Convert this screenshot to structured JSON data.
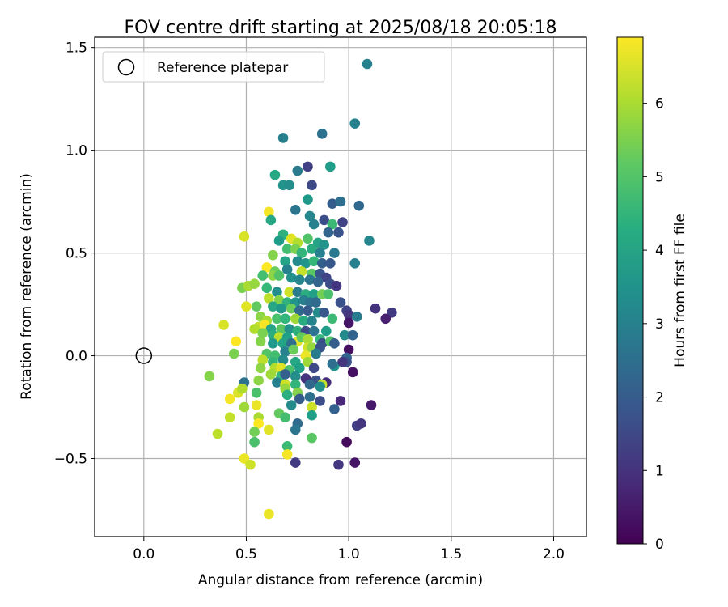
{
  "chart_data": {
    "type": "scatter",
    "title": "FOV centre drift starting at 2025/08/18 20:05:18",
    "xlabel": "Angular distance from reference (arcmin)",
    "ylabel": "Rotation from reference (arcmin)",
    "xlim": [
      -0.24,
      2.16
    ],
    "ylim": [
      -0.88,
      1.55
    ],
    "xticks": [
      0.0,
      0.5,
      1.0,
      1.5,
      2.0
    ],
    "xtick_labels": [
      "0.0",
      "0.5",
      "1.0",
      "1.5",
      "2.0"
    ],
    "yticks": [
      -0.5,
      0.0,
      0.5,
      1.0,
      1.5
    ],
    "ytick_labels": [
      "−0.5",
      "0.0",
      "0.5",
      "1.0",
      "1.5"
    ],
    "grid": true,
    "legend": {
      "placement": "upper-left",
      "entries": [
        {
          "label": "Reference platepar",
          "marker": "open-circle"
        }
      ]
    },
    "reference_point": {
      "x": 0.0,
      "y": 0.0,
      "label": "Reference platepar"
    },
    "colorbar": {
      "label": "Hours from first FF file",
      "colormap": "viridis",
      "min": 0,
      "max": 6.9,
      "ticks": [
        0,
        1,
        2,
        3,
        4,
        5,
        6
      ],
      "tick_labels": [
        "0",
        "1",
        "2",
        "3",
        "4",
        "5",
        "6"
      ]
    },
    "series": [
      {
        "points": [
          [
            1.09,
            1.42,
            3.0
          ],
          [
            1.03,
            1.13,
            3.1
          ],
          [
            0.68,
            1.06,
            3.0
          ],
          [
            0.87,
            1.08,
            2.6
          ],
          [
            0.8,
            0.92,
            1.3
          ],
          [
            0.75,
            0.9,
            2.9
          ],
          [
            0.91,
            0.92,
            3.8
          ],
          [
            0.64,
            0.88,
            4.1
          ],
          [
            0.82,
            0.83,
            1.5
          ],
          [
            0.68,
            0.83,
            3.6
          ],
          [
            0.71,
            0.83,
            3.4
          ],
          [
            0.8,
            0.76,
            3.7
          ],
          [
            0.92,
            0.74,
            2.0
          ],
          [
            0.96,
            0.75,
            2.5
          ],
          [
            1.05,
            0.73,
            2.3
          ],
          [
            0.74,
            0.71,
            2.7
          ],
          [
            0.61,
            0.7,
            6.8
          ],
          [
            0.62,
            0.66,
            4.1
          ],
          [
            0.81,
            0.68,
            3.2
          ],
          [
            0.88,
            0.66,
            1.6
          ],
          [
            0.97,
            0.65,
            1.4
          ],
          [
            0.83,
            0.64,
            3.0
          ],
          [
            0.92,
            0.64,
            4.7
          ],
          [
            0.9,
            0.6,
            2.2
          ],
          [
            0.95,
            0.6,
            1.8
          ],
          [
            0.68,
            0.59,
            4.4
          ],
          [
            0.72,
            0.57,
            6.6
          ],
          [
            0.75,
            0.55,
            6.1
          ],
          [
            0.8,
            0.57,
            5.0
          ],
          [
            0.85,
            0.55,
            4.0
          ],
          [
            0.88,
            0.54,
            3.5
          ],
          [
            1.1,
            0.56,
            3.2
          ],
          [
            0.49,
            0.58,
            6.5
          ],
          [
            0.66,
            0.56,
            3.8
          ],
          [
            0.7,
            0.52,
            4.8
          ],
          [
            0.74,
            0.52,
            5.5
          ],
          [
            0.77,
            0.5,
            4.5
          ],
          [
            0.82,
            0.52,
            4.2
          ],
          [
            0.86,
            0.5,
            3.0
          ],
          [
            0.93,
            0.5,
            2.8
          ],
          [
            0.63,
            0.49,
            5.6
          ],
          [
            0.69,
            0.46,
            4.0
          ],
          [
            0.75,
            0.46,
            3.3
          ],
          [
            0.79,
            0.45,
            3.6
          ],
          [
            0.83,
            0.46,
            4.6
          ],
          [
            0.87,
            0.45,
            2.1
          ],
          [
            0.91,
            0.45,
            1.9
          ],
          [
            1.03,
            0.45,
            3.0
          ],
          [
            0.6,
            0.43,
            6.9
          ],
          [
            0.64,
            0.41,
            5.3
          ],
          [
            0.7,
            0.42,
            3.1
          ],
          [
            0.77,
            0.41,
            6.3
          ],
          [
            0.82,
            0.4,
            5.1
          ],
          [
            0.86,
            0.4,
            1.8
          ],
          [
            0.89,
            0.38,
            1.4
          ],
          [
            0.58,
            0.39,
            4.8
          ],
          [
            0.63,
            0.39,
            5.7
          ],
          [
            0.66,
            0.39,
            5.0
          ],
          [
            0.72,
            0.38,
            3.5
          ],
          [
            0.76,
            0.37,
            3.2
          ],
          [
            0.81,
            0.37,
            2.7
          ],
          [
            0.85,
            0.36,
            2.2
          ],
          [
            0.91,
            0.35,
            1.6
          ],
          [
            0.94,
            0.34,
            1.1
          ],
          [
            0.48,
            0.33,
            5.5
          ],
          [
            0.51,
            0.34,
            6.0
          ],
          [
            0.54,
            0.35,
            5.8
          ],
          [
            0.6,
            0.33,
            4.6
          ],
          [
            0.65,
            0.31,
            3.4
          ],
          [
            0.71,
            0.31,
            6.4
          ],
          [
            0.75,
            0.31,
            2.9
          ],
          [
            0.79,
            0.3,
            4.3
          ],
          [
            0.83,
            0.3,
            3.9
          ],
          [
            0.87,
            0.3,
            5.4
          ],
          [
            0.9,
            0.3,
            4.9
          ],
          [
            0.61,
            0.28,
            6.2
          ],
          [
            0.66,
            0.27,
            5.6
          ],
          [
            0.7,
            0.26,
            4.4
          ],
          [
            0.74,
            0.26,
            3.6
          ],
          [
            0.78,
            0.27,
            3.0
          ],
          [
            0.81,
            0.26,
            2.6
          ],
          [
            0.84,
            0.26,
            2.4
          ],
          [
            0.96,
            0.26,
            1.7
          ],
          [
            0.5,
            0.24,
            6.6
          ],
          [
            0.55,
            0.24,
            5.2
          ],
          [
            0.63,
            0.24,
            4.1
          ],
          [
            0.67,
            0.23,
            3.7
          ],
          [
            0.72,
            0.23,
            5.3
          ],
          [
            0.76,
            0.22,
            2.3
          ],
          [
            0.8,
            0.22,
            2.0
          ],
          [
            0.85,
            0.21,
            3.3
          ],
          [
            0.88,
            0.21,
            1.9
          ],
          [
            0.99,
            0.22,
            1.4
          ],
          [
            1.0,
            0.2,
            1.1
          ],
          [
            1.13,
            0.23,
            1.0
          ],
          [
            1.21,
            0.21,
            1.2
          ],
          [
            1.18,
            0.18,
            0.6
          ],
          [
            0.57,
            0.19,
            5.7
          ],
          [
            0.6,
            0.17,
            6.0
          ],
          [
            0.65,
            0.18,
            4.9
          ],
          [
            0.69,
            0.18,
            4.5
          ],
          [
            0.74,
            0.18,
            5.9
          ],
          [
            0.78,
            0.17,
            4.2
          ],
          [
            0.82,
            0.17,
            3.1
          ],
          [
            0.92,
            0.18,
            4.7
          ],
          [
            1.04,
            0.19,
            2.9
          ],
          [
            1.0,
            0.16,
            0.4
          ],
          [
            0.39,
            0.15,
            6.5
          ],
          [
            0.56,
            0.14,
            6.3
          ],
          [
            0.59,
            0.15,
            6.8
          ],
          [
            0.62,
            0.13,
            4.0
          ],
          [
            0.67,
            0.13,
            5.1
          ],
          [
            0.71,
            0.13,
            3.5
          ],
          [
            0.75,
            0.12,
            4.4
          ],
          [
            0.79,
            0.12,
            1.5
          ],
          [
            0.83,
            0.12,
            2.6
          ],
          [
            0.89,
            0.12,
            3.8
          ],
          [
            0.98,
            0.1,
            3.3
          ],
          [
            1.02,
            0.1,
            2.2
          ],
          [
            0.54,
            0.13,
            6.1
          ],
          [
            0.58,
            0.11,
            5.5
          ],
          [
            0.63,
            0.1,
            4.3
          ],
          [
            0.66,
            0.09,
            6.2
          ],
          [
            0.7,
            0.09,
            3.9
          ],
          [
            0.75,
            0.07,
            6.6
          ],
          [
            0.77,
            0.09,
            5.2
          ],
          [
            0.8,
            0.08,
            6.0
          ],
          [
            0.86,
            0.08,
            4.6
          ],
          [
            0.87,
            0.06,
            1.6
          ],
          [
            0.91,
            0.07,
            5.0
          ],
          [
            0.93,
            0.06,
            2.0
          ],
          [
            0.45,
            0.07,
            6.9
          ],
          [
            0.57,
            0.07,
            5.6
          ],
          [
            0.63,
            0.06,
            3.7
          ],
          [
            0.68,
            0.06,
            4.0
          ],
          [
            0.72,
            0.06,
            2.5
          ],
          [
            0.8,
            0.04,
            6.4
          ],
          [
            0.82,
            0.04,
            5.8
          ],
          [
            0.86,
            0.04,
            1.8
          ],
          [
            1.0,
            0.03,
            0.3
          ],
          [
            0.44,
            0.01,
            5.5
          ],
          [
            0.6,
            0.01,
            5.0
          ],
          [
            0.64,
            0.0,
            4.8
          ],
          [
            0.69,
            0.02,
            3.0
          ],
          [
            0.73,
            0.03,
            5.3
          ],
          [
            0.79,
            0.0,
            6.7
          ],
          [
            0.84,
            0.01,
            2.9
          ],
          [
            0.99,
            -0.01,
            2.2
          ],
          [
            0.58,
            -0.02,
            6.2
          ],
          [
            0.63,
            -0.03,
            4.5
          ],
          [
            0.68,
            -0.02,
            3.3
          ],
          [
            0.74,
            -0.03,
            4.1
          ],
          [
            0.8,
            -0.03,
            5.9
          ],
          [
            0.99,
            -0.03,
            1.8
          ],
          [
            0.93,
            -0.05,
            3.6
          ],
          [
            0.57,
            -0.06,
            5.7
          ],
          [
            0.64,
            -0.06,
            6.1
          ],
          [
            0.67,
            -0.06,
            6.6
          ],
          [
            0.71,
            -0.07,
            4.9
          ],
          [
            0.76,
            -0.06,
            3.9
          ],
          [
            0.83,
            -0.06,
            1.5
          ],
          [
            0.92,
            -0.04,
            2.5
          ],
          [
            0.97,
            -0.03,
            1.1
          ],
          [
            1.02,
            -0.08,
            0.3
          ],
          [
            0.32,
            -0.1,
            5.6
          ],
          [
            0.62,
            -0.09,
            5.9
          ],
          [
            0.67,
            -0.1,
            4.6
          ],
          [
            0.69,
            -0.09,
            2.1
          ],
          [
            0.74,
            -0.1,
            3.4
          ],
          [
            0.79,
            -0.11,
            1.0
          ],
          [
            0.84,
            -0.12,
            1.7
          ],
          [
            0.89,
            -0.13,
            0.9
          ],
          [
            0.49,
            -0.13,
            2.6
          ],
          [
            0.56,
            -0.12,
            5.7
          ],
          [
            0.65,
            -0.13,
            3.0
          ],
          [
            0.69,
            -0.14,
            6.4
          ],
          [
            0.74,
            -0.14,
            4.5
          ],
          [
            0.81,
            -0.14,
            2.3
          ],
          [
            0.87,
            -0.14,
            6.3
          ],
          [
            0.86,
            -0.15,
            3.4
          ],
          [
            0.46,
            -0.18,
            6.5
          ],
          [
            0.48,
            -0.16,
            6.1
          ],
          [
            0.42,
            -0.21,
            6.8
          ],
          [
            0.55,
            -0.18,
            4.9
          ],
          [
            0.69,
            -0.16,
            5.8
          ],
          [
            0.7,
            -0.19,
            4.3
          ],
          [
            0.75,
            -0.18,
            5.6
          ],
          [
            0.76,
            -0.21,
            2.0
          ],
          [
            0.81,
            -0.2,
            2.5
          ],
          [
            0.86,
            -0.22,
            1.6
          ],
          [
            0.96,
            -0.22,
            0.8
          ],
          [
            1.11,
            -0.24,
            0.5
          ],
          [
            0.49,
            -0.25,
            5.9
          ],
          [
            0.55,
            -0.24,
            6.7
          ],
          [
            0.72,
            -0.24,
            3.3
          ],
          [
            0.82,
            -0.25,
            6.4
          ],
          [
            0.93,
            -0.26,
            2.1
          ],
          [
            0.42,
            -0.3,
            6.3
          ],
          [
            0.56,
            -0.3,
            6.0
          ],
          [
            0.66,
            -0.28,
            5.2
          ],
          [
            0.69,
            -0.3,
            4.8
          ],
          [
            0.75,
            -0.33,
            2.4
          ],
          [
            0.82,
            -0.29,
            3.9
          ],
          [
            0.56,
            -0.33,
            6.9
          ],
          [
            0.74,
            -0.36,
            2.7
          ],
          [
            0.36,
            -0.38,
            6.2
          ],
          [
            0.54,
            -0.37,
            5.4
          ],
          [
            0.61,
            -0.36,
            6.6
          ],
          [
            0.82,
            -0.4,
            5.1
          ],
          [
            0.54,
            -0.42,
            4.9
          ],
          [
            1.04,
            -0.34,
            1.3
          ],
          [
            1.06,
            -0.33,
            1.1
          ],
          [
            0.99,
            -0.42,
            0.2
          ],
          [
            0.7,
            -0.44,
            4.7
          ],
          [
            0.7,
            -0.48,
            6.8
          ],
          [
            0.49,
            -0.5,
            6.7
          ],
          [
            0.52,
            -0.53,
            6.4
          ],
          [
            0.74,
            -0.52,
            1.2
          ],
          [
            0.95,
            -0.53,
            1.1
          ],
          [
            1.03,
            -0.52,
            0.4
          ],
          [
            0.61,
            -0.77,
            6.7
          ]
        ]
      }
    ]
  }
}
